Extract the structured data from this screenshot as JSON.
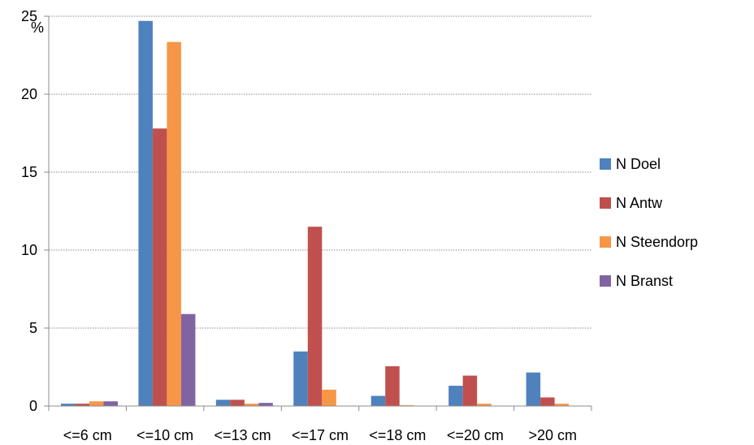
{
  "chart_data": {
    "type": "bar",
    "title": "",
    "xlabel": "",
    "ylabel": "%",
    "ylim": [
      0,
      25
    ],
    "yticks": [
      0,
      5,
      10,
      15,
      20,
      25
    ],
    "grid": true,
    "legend_position": "right",
    "categories": [
      "<=6 cm",
      "<=10 cm",
      "<=13 cm",
      "<=17 cm",
      "<=18 cm",
      "<=20 cm",
      ">20 cm"
    ],
    "series": [
      {
        "name": "N Doel",
        "color": "#4f81bd",
        "values": [
          0.15,
          24.7,
          0.4,
          3.5,
          0.65,
          1.3,
          2.15
        ]
      },
      {
        "name": "N Antw",
        "color": "#c0504d",
        "values": [
          0.15,
          17.8,
          0.4,
          11.5,
          2.55,
          1.95,
          0.55
        ]
      },
      {
        "name": "N Steendorp",
        "color": "#f79646",
        "values": [
          0.3,
          23.35,
          0.15,
          1.05,
          0.05,
          0.15,
          0.15
        ]
      },
      {
        "name": "N Branst",
        "color": "#8064a2",
        "values": [
          0.3,
          5.9,
          0.2,
          0.0,
          0.0,
          0.0,
          0.0
        ]
      }
    ]
  }
}
